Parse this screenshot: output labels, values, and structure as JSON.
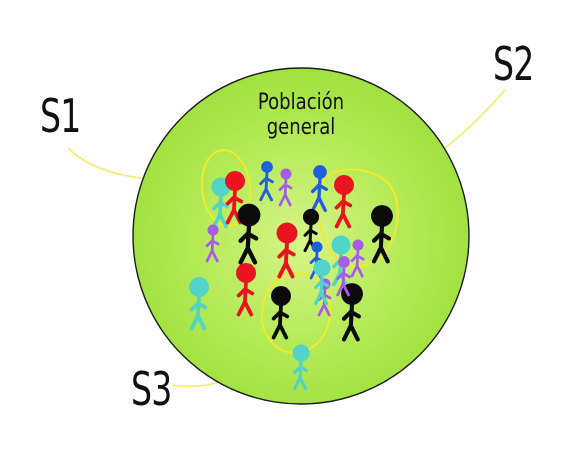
{
  "population": {
    "label_line1": "Población",
    "label_line2": "general",
    "fill": "#9ee03c",
    "fill_center": "#d8f58a"
  },
  "samples": [
    {
      "id": "S1",
      "label": "S1"
    },
    {
      "id": "S2",
      "label": "S2"
    },
    {
      "id": "S3",
      "label": "S3"
    }
  ],
  "colors": {
    "sample_ring": "#f2ea2a",
    "leader_line": "#f4ee6a",
    "red": "#e8141e",
    "black": "#0b0b0b",
    "blue": "#1f5fe0",
    "purple": "#a45ee6",
    "teal": "#52d4c8"
  },
  "figures": [
    {
      "color": "teal",
      "variant": "head"
    },
    {
      "color": "red",
      "variant": "head"
    },
    {
      "color": "black",
      "variant": "head"
    },
    {
      "color": "blue",
      "variant": "small"
    },
    {
      "color": "purple",
      "variant": "small"
    },
    {
      "color": "blue",
      "variant": "small"
    },
    {
      "color": "red",
      "variant": "head"
    },
    {
      "color": "black",
      "variant": "head"
    },
    {
      "color": "red",
      "variant": "head"
    },
    {
      "color": "black",
      "variant": "head"
    },
    {
      "color": "purple",
      "variant": "small"
    },
    {
      "color": "blue",
      "variant": "small"
    },
    {
      "color": "teal",
      "variant": "head"
    },
    {
      "color": "purple",
      "variant": "small"
    },
    {
      "color": "teal",
      "variant": "head"
    },
    {
      "color": "red",
      "variant": "head"
    },
    {
      "color": "black",
      "variant": "head"
    },
    {
      "color": "purple",
      "variant": "small"
    },
    {
      "color": "black",
      "variant": "head"
    },
    {
      "color": "teal",
      "variant": "head"
    },
    {
      "color": "purple",
      "variant": "small"
    },
    {
      "color": "teal",
      "variant": "head"
    }
  ]
}
